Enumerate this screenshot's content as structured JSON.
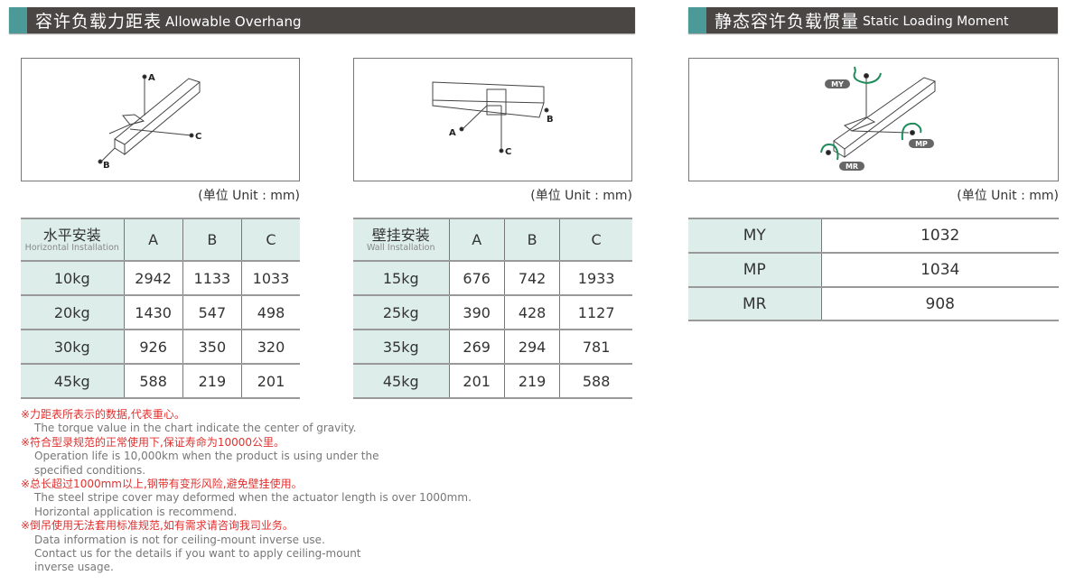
{
  "overhang": {
    "title_zh": "容许负载力距表",
    "title_en": "Allowable Overhang"
  },
  "moment": {
    "title_zh": "静态容许负载惯量",
    "title_en": "Static Loading Moment"
  },
  "unit_label": "(单位 Unit : mm)",
  "diagram_labels": {
    "a": "A",
    "b": "B",
    "c": "C",
    "my": "MY",
    "mp": "MP",
    "mr": "MR"
  },
  "horizontal_table": {
    "header_zh": "水平安装",
    "header_en": "Horizontal Installation",
    "columns": [
      "A",
      "B",
      "C"
    ],
    "rows": [
      [
        "10kg",
        "2942",
        "1133",
        "1033"
      ],
      [
        "20kg",
        "1430",
        "547",
        "498"
      ],
      [
        "30kg",
        "926",
        "350",
        "320"
      ],
      [
        "45kg",
        "588",
        "219",
        "201"
      ]
    ]
  },
  "wall_table": {
    "header_zh": "壁挂安装",
    "header_en": "Wall Installation",
    "columns": [
      "A",
      "B",
      "C"
    ],
    "rows": [
      [
        "15kg",
        "676",
        "742",
        "1933"
      ],
      [
        "25kg",
        "390",
        "428",
        "1127"
      ],
      [
        "35kg",
        "269",
        "294",
        "781"
      ],
      [
        "45kg",
        "201",
        "219",
        "588"
      ]
    ]
  },
  "moment_table": {
    "rows": [
      [
        "MY",
        "1032"
      ],
      [
        "MP",
        "1034"
      ],
      [
        "MR",
        "908"
      ]
    ]
  },
  "notes": [
    {
      "zh": "※力距表所表示的数据,代表重心。",
      "en": [
        "The torque value in the chart indicate the center of gravity."
      ]
    },
    {
      "zh": "※符合型录规范的正常使用下,保证寿命为10000公里。",
      "en": [
        "Operation life is 10,000km when the product is using under the",
        "specified conditions."
      ]
    },
    {
      "zh": "※总长超过1000mm以上,钢带有变形风险,避免壁挂使用。",
      "en": [
        "The steel stripe cover may deformed when the actuator length is over 1000mm.",
        "Horizontal application is recommend."
      ]
    },
    {
      "zh": "※倒吊使用无法套用标准规范,如有需求请咨询我司业务。",
      "en": [
        "Data information is not for ceiling-mount inverse use.",
        "Contact us for the details if you want to apply ceiling-mount",
        "inverse usage."
      ]
    }
  ],
  "colors": {
    "header_bg": "#4a4644",
    "accent": "#4c9a97",
    "table_mint": "#ddeeea",
    "note_red": "#e0312f",
    "arrow_green": "#1f8a5a"
  }
}
